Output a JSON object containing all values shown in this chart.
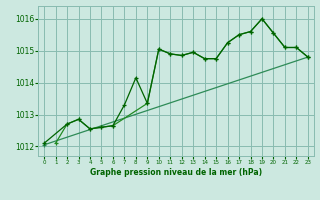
{
  "title": "Graphe pression niveau de la mer (hPa)",
  "bg_color": "#cce8e0",
  "grid_color": "#88bbb0",
  "line_color_1": "#006400",
  "line_color_2": "#228b22",
  "line_color_3": "#2e8b57",
  "xlim": [
    -0.5,
    23.5
  ],
  "ylim": [
    1011.7,
    1016.4
  ],
  "yticks": [
    1012,
    1013,
    1014,
    1015,
    1016
  ],
  "xticks": [
    0,
    1,
    2,
    3,
    4,
    5,
    6,
    7,
    8,
    9,
    10,
    11,
    12,
    13,
    14,
    15,
    16,
    17,
    18,
    19,
    20,
    21,
    22,
    23
  ],
  "series1_x": [
    0,
    2,
    3,
    4,
    5,
    6,
    7,
    8,
    9,
    10,
    11,
    12,
    13,
    14,
    15,
    16,
    17,
    18,
    19,
    20,
    21,
    22,
    23
  ],
  "series1_y": [
    1012.1,
    1012.7,
    1012.85,
    1012.55,
    1012.6,
    1012.65,
    1013.3,
    1014.15,
    1013.35,
    1015.05,
    1014.9,
    1014.85,
    1014.95,
    1014.75,
    1014.75,
    1015.25,
    1015.5,
    1015.6,
    1016.0,
    1015.55,
    1015.1,
    1015.1,
    1014.8
  ],
  "series2_x": [
    1,
    2,
    3,
    4,
    5,
    6,
    9,
    10,
    11,
    12,
    13,
    14,
    15,
    16,
    17,
    18,
    19,
    20,
    21,
    22,
    23
  ],
  "series2_y": [
    1012.1,
    1012.7,
    1012.85,
    1012.55,
    1012.6,
    1012.65,
    1013.35,
    1015.05,
    1014.9,
    1014.85,
    1014.95,
    1014.75,
    1014.75,
    1015.25,
    1015.5,
    1015.6,
    1016.0,
    1015.55,
    1015.1,
    1015.1,
    1014.8
  ],
  "series3_x": [
    0,
    23
  ],
  "series3_y": [
    1012.05,
    1014.8
  ]
}
